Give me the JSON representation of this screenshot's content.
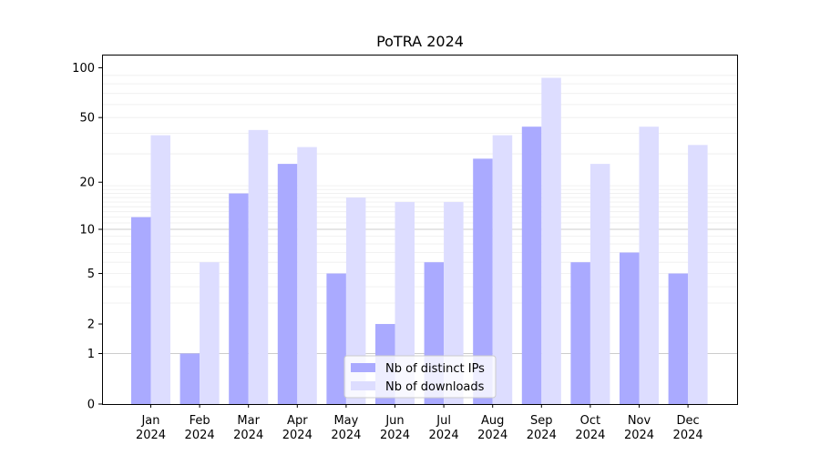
{
  "chart_data": {
    "type": "bar",
    "title": "PoTRA 2024",
    "xlabel": "",
    "ylabel": "",
    "yscale": "log1p",
    "ylim": [
      0,
      120
    ],
    "yticks": [
      0,
      1,
      2,
      5,
      10,
      20,
      50,
      100
    ],
    "grid": "horizontal",
    "legend_position": "bottom-center",
    "categories": [
      {
        "month": "Jan",
        "year": "2024"
      },
      {
        "month": "Feb",
        "year": "2024"
      },
      {
        "month": "Mar",
        "year": "2024"
      },
      {
        "month": "Apr",
        "year": "2024"
      },
      {
        "month": "May",
        "year": "2024"
      },
      {
        "month": "Jun",
        "year": "2024"
      },
      {
        "month": "Jul",
        "year": "2024"
      },
      {
        "month": "Aug",
        "year": "2024"
      },
      {
        "month": "Sep",
        "year": "2024"
      },
      {
        "month": "Oct",
        "year": "2024"
      },
      {
        "month": "Nov",
        "year": "2024"
      },
      {
        "month": "Dec",
        "year": "2024"
      }
    ],
    "series": [
      {
        "name": "Nb of distinct IPs",
        "color": "#aaaaff",
        "values": [
          12,
          1,
          17,
          26,
          5,
          2,
          6,
          28,
          44,
          6,
          7,
          5
        ]
      },
      {
        "name": "Nb of downloads",
        "color": "#ddddff",
        "values": [
          39,
          6,
          42,
          33,
          16,
          15,
          15,
          39,
          87,
          26,
          44,
          34
        ]
      }
    ]
  }
}
